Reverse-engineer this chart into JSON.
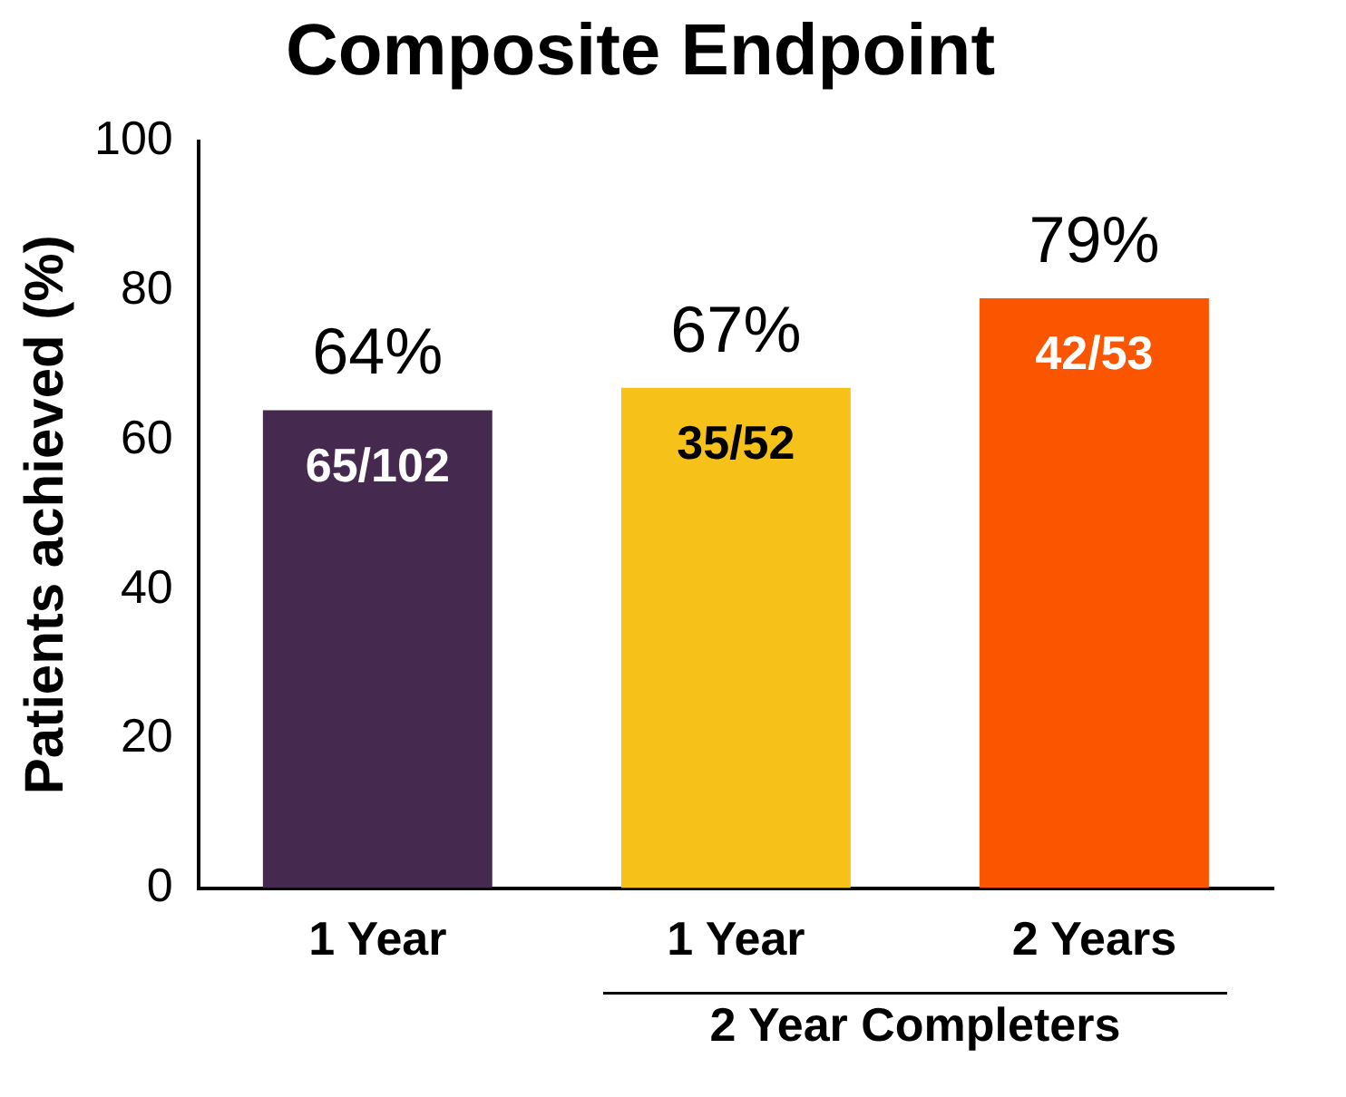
{
  "chart_data": {
    "type": "bar",
    "title": "Composite Endpoint",
    "ylabel": "Patients achieved (%)",
    "categories": [
      "1 Year",
      "1 Year",
      "2 Years"
    ],
    "values": [
      64,
      67,
      79
    ],
    "colors": [
      "#45294f",
      "#f6c21a",
      "#fc5500"
    ],
    "value_labels": [
      "64%",
      "67%",
      "79%"
    ],
    "annotations": [
      "65/102",
      "35/52",
      "42/53",
      "2 Year Completers"
    ],
    "ylim": [
      0,
      100
    ],
    "yticks": [
      0,
      20,
      40,
      60,
      80,
      100
    ],
    "grid": false,
    "legend": false
  }
}
